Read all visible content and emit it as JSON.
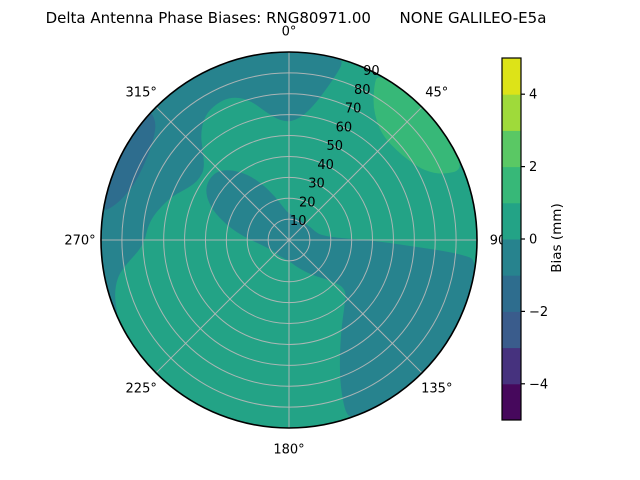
{
  "title": "Delta Antenna Phase Biases: RNG80971.00      NONE GALILEO-E5a",
  "chart_data": {
    "type": "polar_contour",
    "title": "Delta Antenna Phase Biases: RNG80971.00      NONE GALILEO-E5a",
    "angular_axis": {
      "ticks_deg": [
        0,
        45,
        90,
        135,
        180,
        225,
        270,
        315
      ],
      "tick_labels": [
        "0°",
        "45°",
        "90",
        "135°",
        "180°",
        "225°",
        "270°",
        "315°"
      ],
      "direction": "clockwise",
      "zero_location": "top"
    },
    "radial_axis": {
      "ticks": [
        10,
        20,
        30,
        40,
        50,
        60,
        70,
        80,
        90
      ],
      "max": 90,
      "label_angle_deg": 26
    },
    "grid": {
      "color": "#b9b9b9",
      "ring_step": 10,
      "spoke_step_deg": 45,
      "outline_color": "#000000"
    },
    "colorbar": {
      "label": "Bias (mm)",
      "level_min": -5,
      "level_max": 5,
      "level_step": 1,
      "tick_values": [
        -4,
        -2,
        0,
        2,
        4
      ],
      "tick_labels": [
        "−4",
        "−2",
        "0",
        "2",
        "4"
      ],
      "colors": [
        "#46085c",
        "#46327e",
        "#3a5c8c",
        "#2e6d8e",
        "#27838e",
        "#23a386",
        "#37b878",
        "#5ac864",
        "#9fda3a",
        "#dde318"
      ]
    },
    "base_band": {
      "bias_range_mm": "0 to 1",
      "color_index": 5
    },
    "regions": [
      {
        "name": "northwest-top-crescent",
        "bias_range_mm": "-1 to 0",
        "color_index": 4,
        "points_az_r": [
          [
            245,
            90
          ],
          [
            253,
            90
          ],
          [
            261,
            90
          ],
          [
            269,
            90
          ],
          [
            277,
            90
          ],
          [
            285,
            90
          ],
          [
            293,
            90
          ],
          [
            301,
            90
          ],
          [
            309,
            90
          ],
          [
            317,
            90
          ],
          [
            325,
            90
          ],
          [
            333,
            90
          ],
          [
            341,
            90
          ],
          [
            349,
            90
          ],
          [
            357,
            90
          ],
          [
            5,
            90
          ],
          [
            13,
            90
          ],
          [
            17,
            90
          ],
          [
            16,
            82
          ],
          [
            10,
            64
          ],
          [
            3,
            57
          ],
          [
            356,
            57
          ],
          [
            350,
            62
          ],
          [
            344,
            70
          ],
          [
            338,
            74
          ],
          [
            332,
            74
          ],
          [
            326,
            72
          ],
          [
            320,
            66
          ],
          [
            315,
            58
          ],
          [
            310,
            53
          ],
          [
            305,
            52
          ],
          [
            300,
            53
          ],
          [
            295,
            56
          ],
          [
            290,
            60
          ],
          [
            285,
            63
          ],
          [
            280,
            66
          ],
          [
            275,
            68
          ],
          [
            270,
            69
          ],
          [
            266,
            72
          ],
          [
            262,
            78
          ],
          [
            258,
            84
          ],
          [
            252,
            88
          ]
        ]
      },
      {
        "name": "west-rim-blue-sliver",
        "bias_range_mm": "-2 to -1",
        "color_index": 3,
        "points_az_r": [
          [
            279,
            90
          ],
          [
            287,
            90
          ],
          [
            295,
            90
          ],
          [
            303,
            90
          ],
          [
            311,
            90
          ],
          [
            313,
            90
          ],
          [
            311,
            84
          ],
          [
            305,
            80
          ],
          [
            297,
            78
          ],
          [
            289,
            79
          ],
          [
            283,
            83
          ],
          [
            280,
            87
          ]
        ]
      },
      {
        "name": "center-and-southeast-blob",
        "bias_range_mm": "-1 to 0",
        "color_index": 4,
        "points_az_r": [
          [
            96,
            90
          ],
          [
            104,
            90
          ],
          [
            112,
            90
          ],
          [
            120,
            90
          ],
          [
            128,
            90
          ],
          [
            136,
            90
          ],
          [
            144,
            90
          ],
          [
            152,
            90
          ],
          [
            158,
            90
          ],
          [
            162,
            90
          ],
          [
            161,
            76
          ],
          [
            157,
            62
          ],
          [
            150,
            50
          ],
          [
            141,
            42
          ],
          [
            130,
            36
          ],
          [
            135,
            27
          ],
          [
            147,
            20
          ],
          [
            162,
            14
          ],
          [
            180,
            10
          ],
          [
            198,
            9
          ],
          [
            216,
            9
          ],
          [
            234,
            9
          ],
          [
            250,
            11
          ],
          [
            262,
            14
          ],
          [
            271,
            19
          ],
          [
            278,
            25
          ],
          [
            284,
            31
          ],
          [
            291,
            39
          ],
          [
            298,
            45
          ],
          [
            305,
            48
          ],
          [
            313,
            48
          ],
          [
            320,
            44
          ],
          [
            328,
            37
          ],
          [
            335,
            29
          ],
          [
            342,
            22
          ],
          [
            350,
            16
          ],
          [
            358,
            13
          ],
          [
            8,
            12
          ],
          [
            20,
            11
          ],
          [
            33,
            11
          ],
          [
            46,
            11
          ],
          [
            59,
            12
          ],
          [
            71,
            13
          ],
          [
            80,
            15
          ],
          [
            86,
            20
          ],
          [
            89,
            30
          ],
          [
            91,
            44
          ],
          [
            93,
            60
          ],
          [
            94,
            74
          ],
          [
            95,
            84
          ]
        ]
      },
      {
        "name": "northeast-green-arc",
        "bias_range_mm": "1 to 2",
        "color_index": 6,
        "points_az_r": [
          [
            28,
            90
          ],
          [
            36,
            90
          ],
          [
            44,
            90
          ],
          [
            52,
            90
          ],
          [
            60,
            90
          ],
          [
            68,
            90
          ],
          [
            67,
            80
          ],
          [
            63,
            73
          ],
          [
            57,
            69
          ],
          [
            50,
            67
          ],
          [
            43,
            67
          ],
          [
            37,
            70
          ],
          [
            32,
            76
          ],
          [
            29,
            84
          ]
        ]
      }
    ]
  }
}
